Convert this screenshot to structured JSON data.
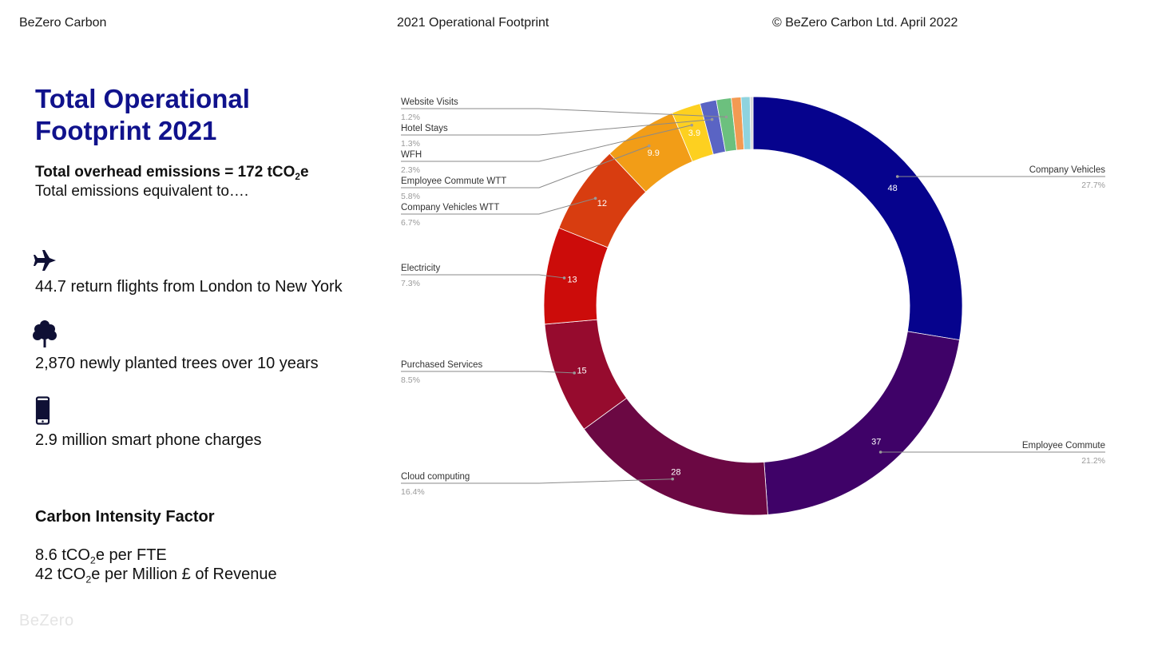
{
  "header": {
    "brand": "BeZero Carbon",
    "title": "2021 Operational Footprint",
    "copyright": "© BeZero Carbon Ltd. April 2022"
  },
  "left": {
    "title_line1": "Total Operational",
    "title_line2": "Footprint 2021",
    "overhead_prefix": "Total overhead emissions = 172 tCO",
    "overhead_sub": "2",
    "overhead_suffix": "e",
    "equivalent_text": "Total emissions equivalent to….",
    "equivalents": [
      {
        "icon": "airplane-icon",
        "text": "44.7 return flights from London to New York"
      },
      {
        "icon": "tree-icon",
        "text": "2,870 newly planted trees over 10 years"
      },
      {
        "icon": "smartphone-icon",
        "text": "2.9 million smart phone charges"
      }
    ],
    "carbon_intensity_title": "Carbon Intensity Factor",
    "cif_line1_prefix": "8.6 tCO",
    "cif_line1_sub": "2",
    "cif_line1_suffix": "e per FTE",
    "cif_line2_prefix": "42 tCO",
    "cif_line2_sub": "2",
    "cif_line2_suffix": "e per Million £ of Revenue"
  },
  "footer": {
    "logo": "BeZero"
  },
  "chart_data": {
    "type": "pie",
    "donut": true,
    "start_angle_deg": 0,
    "direction": "clockwise",
    "series": [
      {
        "label": "Company Vehicles",
        "value": 48,
        "value_label": "48",
        "percent": "27.7%",
        "color": "#06038d"
      },
      {
        "label": "Employee Commute",
        "value": 37,
        "value_label": "37",
        "percent": "21.2%",
        "color": "#3f0268"
      },
      {
        "label": "Cloud computing",
        "value": 28,
        "value_label": "28",
        "percent": "16.4%",
        "color": "#6b0843"
      },
      {
        "label": "Purchased Services",
        "value": 15,
        "value_label": "15",
        "percent": "8.5%",
        "color": "#960b2e"
      },
      {
        "label": "Electricity",
        "value": 13,
        "value_label": "13",
        "percent": "7.3%",
        "color": "#cc0c0a"
      },
      {
        "label": "Company Vehicles WTT",
        "value": 12,
        "value_label": "12",
        "percent": "6.7%",
        "color": "#d83d10"
      },
      {
        "label": "Employee Commute WTT",
        "value": 9.9,
        "value_label": "9.9",
        "percent": "5.8%",
        "color": "#f29d17"
      },
      {
        "label": "WFH",
        "value": 3.9,
        "value_label": "3.9",
        "percent": "2.3%",
        "color": "#fdd020"
      },
      {
        "label": "Hotel Stays",
        "value": 2.2,
        "value_label": "",
        "percent": "1.3%",
        "color": "#5a64c4"
      },
      {
        "label": "Website Visits",
        "value": 2.0,
        "value_label": "",
        "percent": "1.2%",
        "color": "#6cc07e"
      },
      {
        "label": "",
        "value": 1.3,
        "value_label": "",
        "percent": "",
        "color": "#f39a52"
      },
      {
        "label": "",
        "value": 1.2,
        "value_label": "",
        "percent": "",
        "color": "#8fd3de"
      },
      {
        "label": "",
        "value": 0.4,
        "value_label": "",
        "percent": "",
        "color": "#d8d8d8"
      }
    ]
  }
}
